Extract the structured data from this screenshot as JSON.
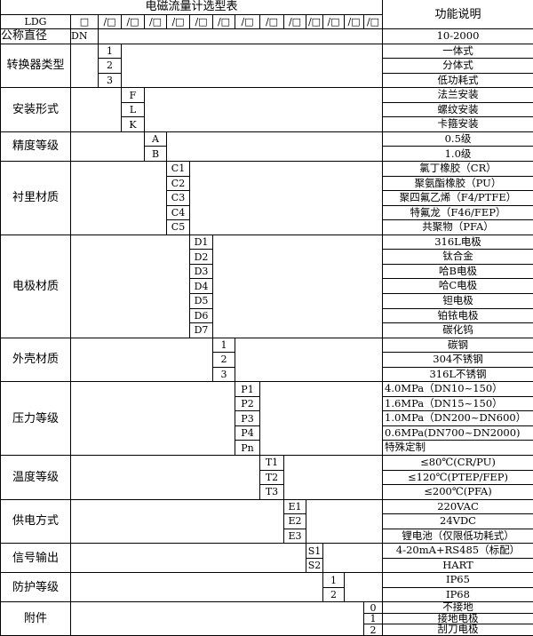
{
  "header": {
    "title": "电磁流量计选型表",
    "function_header": "功能说明",
    "model": "LDG",
    "first_box": "□",
    "slot_box": "/□",
    "nominal_label": "公称直径",
    "nominal_code": "DN",
    "nominal_desc": "10-2000"
  },
  "groups": [
    {
      "label": "转换器类型",
      "items": [
        {
          "code": "1",
          "desc": "一体式"
        },
        {
          "code": "2",
          "desc": "分体式"
        },
        {
          "code": "3",
          "desc": "低功耗式"
        }
      ]
    },
    {
      "label": "安装形式",
      "items": [
        {
          "code": "F",
          "desc": "法兰安装"
        },
        {
          "code": "L",
          "desc": "螺纹安装"
        },
        {
          "code": "K",
          "desc": "卡箍安装"
        }
      ]
    },
    {
      "label": "精度等级",
      "items": [
        {
          "code": "A",
          "desc": "0.5级"
        },
        {
          "code": "B",
          "desc": "1.0级"
        }
      ]
    },
    {
      "label": "衬里材质",
      "items": [
        {
          "code": "C1",
          "desc": "氯丁橡胶（CR）"
        },
        {
          "code": "C2",
          "desc": "聚氨酯橡胶（PU）"
        },
        {
          "code": "C3",
          "desc": "聚四氟乙烯（F4/PTFE）"
        },
        {
          "code": "C4",
          "desc": "特氟龙（F46/FEP）"
        },
        {
          "code": "C5",
          "desc": "共聚物（PFA）"
        }
      ]
    },
    {
      "label": "电极材质",
      "items": [
        {
          "code": "D1",
          "desc": "316L电极"
        },
        {
          "code": "D2",
          "desc": "钛合金"
        },
        {
          "code": "D3",
          "desc": "哈B电极"
        },
        {
          "code": "D4",
          "desc": "哈C电极"
        },
        {
          "code": "D5",
          "desc": "钽电极"
        },
        {
          "code": "D6",
          "desc": "铂铱电极"
        },
        {
          "code": "D7",
          "desc": "碳化钨"
        }
      ]
    },
    {
      "label": "外壳材质",
      "items": [
        {
          "code": "1",
          "desc": "碳钢"
        },
        {
          "code": "2",
          "desc": "304不锈钢"
        },
        {
          "code": "3",
          "desc": "316L不锈钢"
        }
      ]
    },
    {
      "label": "压力等级",
      "align": "left",
      "items": [
        {
          "code": "P1",
          "desc": "4.0MPa（DN10~150）"
        },
        {
          "code": "P2",
          "desc": "1.6MPa（DN15~150）"
        },
        {
          "code": "P3",
          "desc": "1.0MPa（DN200~DN600）"
        },
        {
          "code": "P4",
          "desc": "0.6MPa(DN700~DN2000)"
        },
        {
          "code": "Pn",
          "desc": "特殊定制"
        }
      ]
    },
    {
      "label": "温度等级",
      "items": [
        {
          "code": "T1",
          "desc": "≤80℃(CR/PU)"
        },
        {
          "code": "T2",
          "desc": "≤120℃(PTEP/FEP)"
        },
        {
          "code": "T3",
          "desc": "≤200℃(PFA)"
        }
      ]
    },
    {
      "label": "供电方式",
      "items": [
        {
          "code": "E1",
          "desc": "220VAC"
        },
        {
          "code": "E2",
          "desc": "24VDC"
        },
        {
          "code": "E3",
          "desc": "锂电池（仅限低功耗式）"
        }
      ]
    },
    {
      "label": "信号输出",
      "items": [
        {
          "code": "S1",
          "desc": "4-20mA+RS485（标配）"
        },
        {
          "code": "S2",
          "desc": "HART"
        }
      ]
    },
    {
      "label": "防护等级",
      "items": [
        {
          "code": "1",
          "desc": "IP65"
        },
        {
          "code": "2",
          "desc": "IP68"
        }
      ]
    },
    {
      "label": "附件",
      "items": [
        {
          "code": "0",
          "desc": "不接地"
        },
        {
          "code": "1",
          "desc": "接地电极"
        },
        {
          "code": "2",
          "desc": "刮刀电极"
        }
      ]
    }
  ]
}
